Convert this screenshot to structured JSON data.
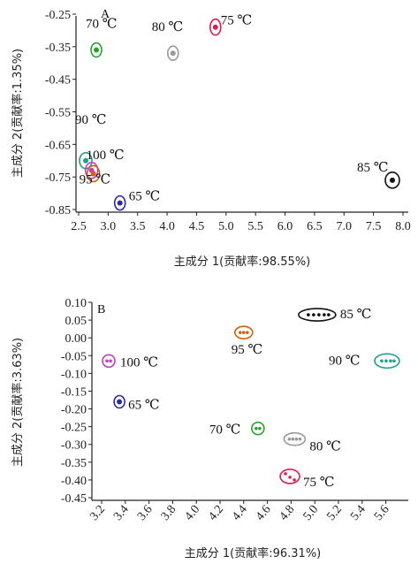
{
  "chart_data": [
    {
      "type": "scatter",
      "title": "A",
      "xlabel": "主成分 1(贡献率:98.55%)",
      "ylabel": "主成分 2(贡献率:1.35%)",
      "xlim": [
        2.5,
        8.0
      ],
      "ylim": [
        -0.85,
        -0.25
      ],
      "xticks": [
        "2.5",
        "3.0",
        "3.5",
        "4.0",
        "4.5",
        "5.0",
        "5.5",
        "6.0",
        "6.5",
        "7.0",
        "7.5",
        "8.0"
      ],
      "yticks": [
        "-0.25",
        "-0.35",
        "-0.45",
        "-0.55",
        "-0.65",
        "-0.75",
        "-0.85"
      ],
      "grid": false,
      "groups": [
        {
          "label": "70 ℃",
          "x": 2.8,
          "y": -0.36,
          "color": "#2ca02c"
        },
        {
          "label": "80 ℃",
          "x": 4.1,
          "y": -0.37,
          "color": "#9a9a9a"
        },
        {
          "label": "75 ℃",
          "x": 4.82,
          "y": -0.29,
          "color": "#d62050"
        },
        {
          "label": "90 ℃",
          "x": 2.62,
          "y": -0.7,
          "color": "#1e9e8e"
        },
        {
          "label": "100 ℃",
          "x": 2.72,
          "y": -0.73,
          "color": "#c040c0"
        },
        {
          "label": "95 ℃",
          "x": 2.75,
          "y": -0.74,
          "color": "#d06010"
        },
        {
          "label": "65 ℃",
          "x": 3.2,
          "y": -0.83,
          "color": "#2c2ca0"
        },
        {
          "label": "85 ℃",
          "x": 7.82,
          "y": -0.76,
          "color": "#111111"
        }
      ]
    },
    {
      "type": "scatter",
      "title": "B",
      "xlabel": "主成分 1(贡献率:96.31%)",
      "ylabel": "主成分 2(贡献率:3.63%)",
      "xlim": [
        3.2,
        5.7
      ],
      "ylim": [
        -0.45,
        0.1
      ],
      "xticks": [
        "3.2",
        "3.4",
        "3.6",
        "3.8",
        "4.0",
        "4.2",
        "4.4",
        "4.6",
        "4.8",
        "5.0",
        "5.2",
        "5.4",
        "5.6"
      ],
      "yticks": [
        "0.10",
        "0.05",
        "0.00",
        "-0.05",
        "-0.10",
        "-0.15",
        "-0.20",
        "-0.25",
        "-0.30",
        "-0.35",
        "-0.40",
        "-0.45"
      ],
      "grid": false,
      "groups": [
        {
          "label": "85 ℃",
          "x": 5.02,
          "y": 0.065,
          "color": "#111111"
        },
        {
          "label": "95 ℃",
          "x": 4.4,
          "y": 0.015,
          "color": "#d06010"
        },
        {
          "label": "100 ℃",
          "x": 3.26,
          "y": -0.065,
          "color": "#c040c0"
        },
        {
          "label": "90 ℃",
          "x": 5.61,
          "y": -0.065,
          "color": "#1e9e8e"
        },
        {
          "label": "65 ℃",
          "x": 3.35,
          "y": -0.18,
          "color": "#2c2ca0"
        },
        {
          "label": "70 ℃",
          "x": 4.52,
          "y": -0.255,
          "color": "#2ca02c"
        },
        {
          "label": "80 ℃",
          "x": 4.83,
          "y": -0.285,
          "color": "#9a9a9a"
        },
        {
          "label": "75 ℃",
          "x": 4.79,
          "y": -0.39,
          "color": "#d62050"
        }
      ]
    }
  ]
}
